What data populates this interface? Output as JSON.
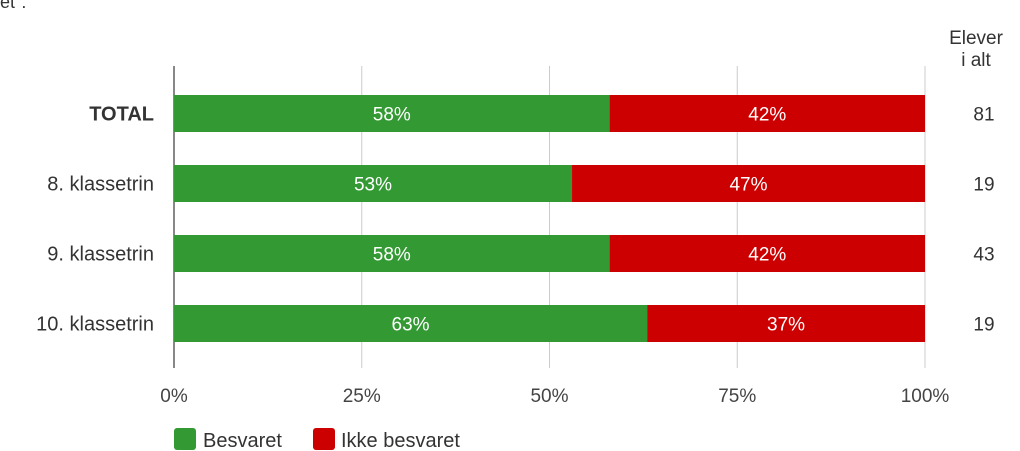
{
  "header_fragment": "et\":",
  "chart_data": {
    "type": "bar",
    "orientation": "horizontal",
    "stacked": true,
    "normalized": true,
    "categories": [
      "TOTAL",
      "8. klassetrin",
      "9. klassetrin",
      "10. klassetrin"
    ],
    "bold_categories": [
      "TOTAL"
    ],
    "series": [
      {
        "name": "Besvaret",
        "color": "#339933",
        "values": [
          58,
          53,
          58,
          63
        ],
        "labels": [
          "58%",
          "53%",
          "58%",
          "63%"
        ]
      },
      {
        "name": "Ikke besvaret",
        "color": "#cc0000",
        "values": [
          42,
          47,
          42,
          37
        ],
        "labels": [
          "42%",
          "47%",
          "42%",
          "37%"
        ]
      }
    ],
    "xlim": [
      0,
      100
    ],
    "x_ticks": [
      0,
      25,
      50,
      75,
      100
    ],
    "x_tick_labels": [
      "0%",
      "25%",
      "50%",
      "75%",
      "100%"
    ],
    "grid": true,
    "right_column": {
      "header_line1": "Elever",
      "header_line2": "i alt",
      "values": [
        "81",
        "19",
        "43",
        "19"
      ]
    },
    "legend": {
      "position": "bottom-left"
    }
  }
}
